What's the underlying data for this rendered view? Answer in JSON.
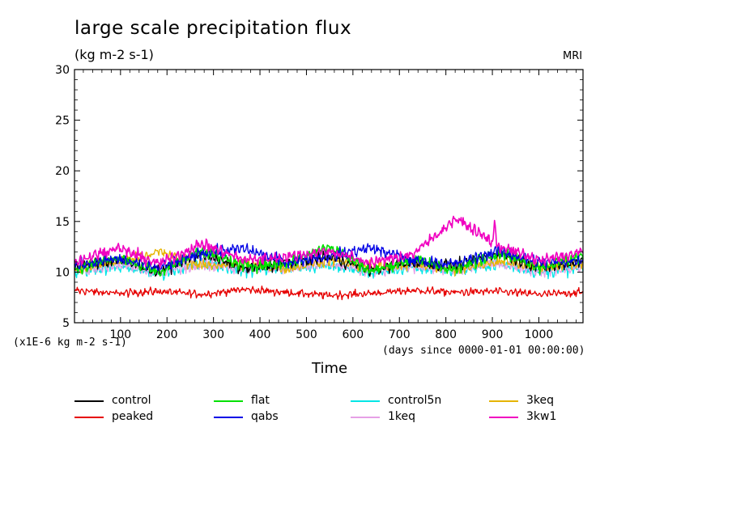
{
  "title": "large scale precipitation flux",
  "subtitle": "(kg m-2 s-1)",
  "source_label": "MRI",
  "y_unit_label": "(x1E-6 kg m-2 s-1)",
  "x_unit_label": "(days since 0000-01-01 00:00:00)",
  "chart_data": {
    "type": "line",
    "title": "large scale precipitation flux",
    "xlabel": "Time",
    "ylabel": "(x1E-6 kg m-2 s-1)",
    "xlim": [
      1,
      1095
    ],
    "ylim": [
      5,
      30
    ],
    "x_ticks": [
      100,
      200,
      300,
      400,
      500,
      600,
      700,
      800,
      900,
      1000
    ],
    "y_ticks": [
      5,
      10,
      15,
      20,
      25,
      30
    ],
    "grid": false,
    "legend_position": "bottom",
    "series": [
      {
        "name": "control",
        "color": "#000000",
        "approx_mean": 10.7,
        "values": [
          10.5,
          11.2,
          10.1,
          11.8,
          10.3,
          10.9,
          11.5,
          10.2,
          11.0,
          10.6,
          11.9,
          10.4,
          11.1
        ]
      },
      {
        "name": "flat",
        "color": "#00e000",
        "approx_mean": 10.7,
        "values": [
          10.3,
          11.4,
          10.0,
          12.2,
          10.6,
          10.8,
          12.6,
          10.1,
          11.3,
          10.2,
          12.0,
          10.5,
          11.6
        ]
      },
      {
        "name": "control5n",
        "color": "#00e6e6",
        "approx_mean": 10.3,
        "values": [
          10.0,
          10.6,
          9.8,
          10.9,
          10.2,
          10.4,
          10.7,
          9.9,
          10.5,
          10.1,
          10.8,
          10.0,
          10.4
        ]
      },
      {
        "name": "3keq",
        "color": "#e6b400",
        "approx_mean": 10.6,
        "values": [
          10.4,
          11.0,
          12.0,
          10.6,
          10.9,
          10.3,
          11.2,
          10.5,
          10.8,
          10.2,
          11.1,
          10.6,
          10.9
        ]
      },
      {
        "name": "peaked",
        "color": "#e60000",
        "approx_mean": 8.0,
        "values": [
          8.2,
          7.9,
          8.1,
          7.8,
          8.3,
          8.0,
          7.7,
          7.9,
          8.2,
          8.0,
          8.1,
          7.8,
          8.0
        ]
      },
      {
        "name": "qabs",
        "color": "#0000e6",
        "approx_mean": 10.9,
        "values": [
          10.7,
          11.3,
          10.4,
          11.9,
          12.3,
          11.0,
          11.6,
          12.4,
          11.1,
          10.8,
          12.1,
          10.9,
          11.2
        ]
      },
      {
        "name": "1keq",
        "color": "#e6a0e6",
        "approx_mean": 10.4,
        "values": [
          10.1,
          10.7,
          9.9,
          10.9,
          10.3,
          10.5,
          10.8,
          10.0,
          10.6,
          10.2,
          10.9,
          10.1,
          10.5
        ]
      },
      {
        "name": "3kw1",
        "color": "#f000c0",
        "approx_mean": 11.3,
        "values": [
          11.0,
          12.4,
          10.8,
          12.8,
          11.2,
          11.5,
          12.1,
          10.9,
          11.8,
          15.3,
          12.6,
          11.1,
          12.0
        ]
      }
    ]
  },
  "legend": [
    {
      "label": "control",
      "color": "#000000"
    },
    {
      "label": "flat",
      "color": "#00e000"
    },
    {
      "label": "control5n",
      "color": "#00e6e6"
    },
    {
      "label": "3keq",
      "color": "#e6b400"
    },
    {
      "label": "peaked",
      "color": "#e60000"
    },
    {
      "label": "qabs",
      "color": "#0000e6"
    },
    {
      "label": "1keq",
      "color": "#e6a0e6"
    },
    {
      "label": "3kw1",
      "color": "#f000c0"
    }
  ]
}
